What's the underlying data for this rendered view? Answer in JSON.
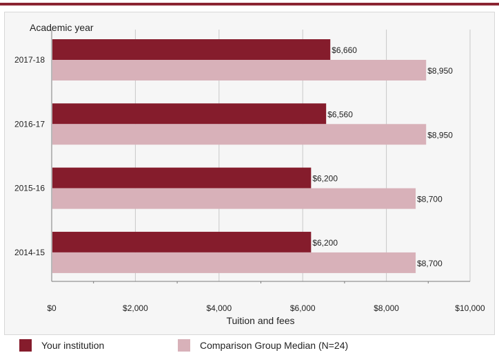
{
  "chart_data": {
    "type": "bar",
    "orientation": "horizontal",
    "title": "",
    "ylabel": "Academic year",
    "xlabel": "Tuition and fees",
    "categories": [
      "2017-18",
      "2016-17",
      "2015-16",
      "2014-15"
    ],
    "series": [
      {
        "name": "Your institution",
        "color": "#851c2c",
        "values": [
          6660,
          6560,
          6200,
          6200
        ],
        "labels": [
          "$6,660",
          "$6,560",
          "$6,200",
          "$6,200"
        ]
      },
      {
        "name": "Comparison Group Median (N=24)",
        "color": "#d8b1b9",
        "values": [
          8950,
          8950,
          8700,
          8700
        ],
        "labels": [
          "$8,950",
          "$8,950",
          "$8,700",
          "$8,700"
        ]
      }
    ],
    "xlim": [
      0,
      10000
    ],
    "xticks": [
      0,
      2000,
      4000,
      6000,
      8000,
      10000
    ],
    "xtick_labels": [
      "$0",
      "$2,000",
      "$4,000",
      "$6,000",
      "$8,000",
      "$10,000"
    ],
    "grid": true,
    "legend_position": "bottom"
  },
  "colors": {
    "accent": "#8b2532",
    "gridline": "#c8c8c8",
    "axis": "#7a7a7a"
  }
}
